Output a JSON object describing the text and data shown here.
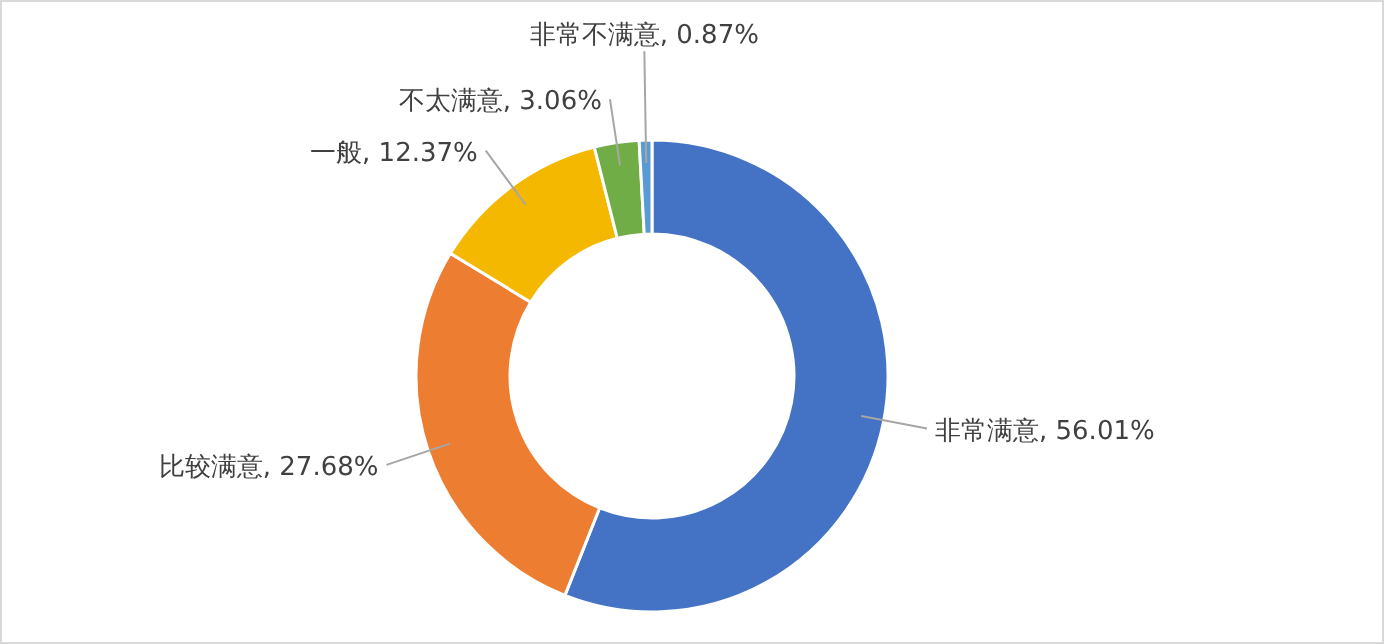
{
  "chart_data": {
    "type": "donut",
    "categories": [
      "非常满意",
      "比较满意",
      "一般",
      "不太满意",
      "非常不满意"
    ],
    "values": [
      56.01,
      27.68,
      12.37,
      3.06,
      0.87
    ],
    "value_labels": [
      "56.01%",
      "27.68%",
      "12.37%",
      "3.06%",
      "0.87%"
    ],
    "colors": [
      "#4472c4",
      "#ed7d31",
      "#f5b800",
      "#70ad47",
      "#5b9bd5"
    ]
  }
}
